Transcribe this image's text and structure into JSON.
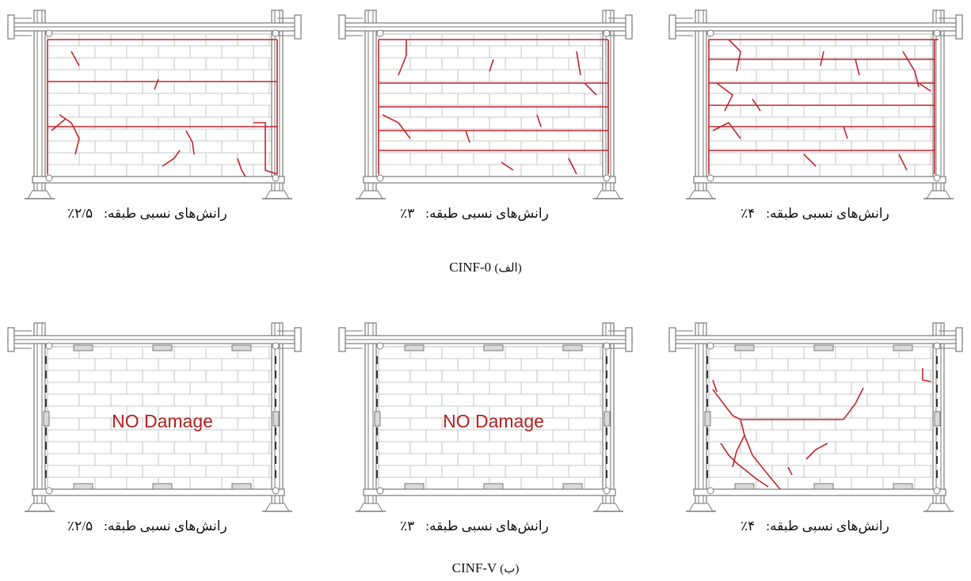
{
  "group_a": {
    "code": "CINF-0",
    "letter": "(الف)",
    "panels": [
      {
        "label": "رانش‌های نسبی طبقه:",
        "drift": "٪۲/۵",
        "damage": "light",
        "note": ""
      },
      {
        "label": "رانش‌های نسبی طبقه:",
        "drift": "٪۳",
        "damage": "medium",
        "note": ""
      },
      {
        "label": "رانش‌های نسبی طبقه:",
        "drift": "٪۴",
        "damage": "heavy",
        "note": ""
      }
    ]
  },
  "group_b": {
    "code": "CINF-V",
    "letter": "(ب)",
    "panels": [
      {
        "label": "رانش‌های نسبی طبقه:",
        "drift": "٪۲/۵",
        "damage": "none",
        "note": "NO Damage"
      },
      {
        "label": "رانش‌های نسبی طبقه:",
        "drift": "٪۳",
        "damage": "none",
        "note": "NO Damage"
      },
      {
        "label": "رانش‌های نسبی طبقه:",
        "drift": "٪۴",
        "damage": "crack",
        "note": ""
      }
    ]
  },
  "colors": {
    "frame": "#7a7a7a",
    "brick": "#b8b8b8",
    "crack": "#c0272d"
  }
}
